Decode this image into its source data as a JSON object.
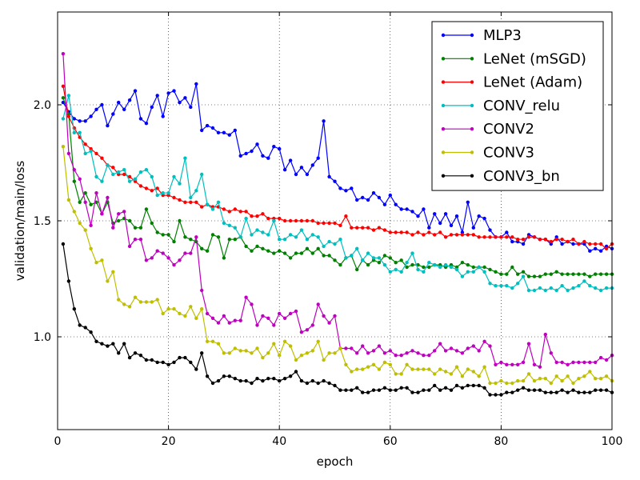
{
  "chart_data": {
    "type": "line",
    "xlabel": "epoch",
    "ylabel": "validation/main/loss",
    "xlim": [
      0,
      100
    ],
    "ylim": [
      0.6,
      2.4
    ],
    "xticks": [
      0,
      20,
      40,
      60,
      80,
      100
    ],
    "xtick_labels": [
      "0",
      "20",
      "40",
      "60",
      "80",
      "100"
    ],
    "yticks": [
      1.0,
      1.5,
      2.0
    ],
    "ytick_labels": [
      "1.0",
      "1.5",
      "2.0"
    ],
    "grid": true,
    "legend_position": "top-right",
    "series": [
      {
        "name": "MLP3",
        "color": "#0000ff",
        "values": [
          2.01,
          1.97,
          1.94,
          1.93,
          1.93,
          1.95,
          1.98,
          2.0,
          1.91,
          1.96,
          2.01,
          1.98,
          2.02,
          2.06,
          1.94,
          1.92,
          1.99,
          2.04,
          1.95,
          2.05,
          2.06,
          2.01,
          2.03,
          1.99,
          2.09,
          1.89,
          1.91,
          1.9,
          1.88,
          1.88,
          1.87,
          1.89,
          1.78,
          1.79,
          1.8,
          1.83,
          1.78,
          1.77,
          1.82,
          1.81,
          1.72,
          1.76,
          1.7,
          1.73,
          1.7,
          1.74,
          1.77,
          1.93,
          1.69,
          1.67,
          1.64,
          1.63,
          1.64,
          1.59,
          1.6,
          1.59,
          1.62,
          1.6,
          1.57,
          1.61,
          1.57,
          1.55,
          1.55,
          1.54,
          1.52,
          1.55,
          1.47,
          1.53,
          1.49,
          1.53,
          1.48,
          1.52,
          1.45,
          1.58,
          1.47,
          1.52,
          1.51,
          1.46,
          1.43,
          1.43,
          1.45,
          1.41,
          1.41,
          1.4,
          1.44,
          1.43,
          1.42,
          1.42,
          1.4,
          1.43,
          1.4,
          1.41,
          1.4,
          1.4,
          1.4,
          1.37,
          1.38,
          1.37,
          1.39,
          1.38
        ]
      },
      {
        "name": "LeNet (mSGD)",
        "color": "#008000",
        "values": [
          2.03,
          1.96,
          1.67,
          1.58,
          1.62,
          1.57,
          1.58,
          1.53,
          1.58,
          1.49,
          1.5,
          1.51,
          1.5,
          1.47,
          1.47,
          1.55,
          1.49,
          1.45,
          1.44,
          1.44,
          1.41,
          1.5,
          1.43,
          1.42,
          1.41,
          1.38,
          1.37,
          1.44,
          1.43,
          1.34,
          1.42,
          1.42,
          1.43,
          1.39,
          1.37,
          1.39,
          1.38,
          1.37,
          1.36,
          1.37,
          1.36,
          1.34,
          1.36,
          1.36,
          1.38,
          1.36,
          1.38,
          1.35,
          1.35,
          1.33,
          1.31,
          1.34,
          1.35,
          1.29,
          1.33,
          1.31,
          1.33,
          1.32,
          1.35,
          1.34,
          1.32,
          1.33,
          1.3,
          1.31,
          1.31,
          1.3,
          1.3,
          1.31,
          1.31,
          1.3,
          1.31,
          1.3,
          1.32,
          1.31,
          1.3,
          1.3,
          1.3,
          1.29,
          1.28,
          1.27,
          1.27,
          1.3,
          1.27,
          1.28,
          1.26,
          1.26,
          1.26,
          1.27,
          1.27,
          1.28,
          1.27,
          1.27,
          1.27,
          1.27,
          1.27,
          1.26,
          1.27,
          1.27,
          1.27,
          1.27
        ]
      },
      {
        "name": "LeNet (Adam)",
        "color": "#ff0000",
        "values": [
          2.08,
          1.95,
          1.9,
          1.86,
          1.83,
          1.81,
          1.79,
          1.77,
          1.74,
          1.73,
          1.7,
          1.7,
          1.69,
          1.67,
          1.65,
          1.64,
          1.63,
          1.64,
          1.61,
          1.61,
          1.6,
          1.59,
          1.58,
          1.58,
          1.58,
          1.56,
          1.57,
          1.56,
          1.56,
          1.55,
          1.54,
          1.55,
          1.54,
          1.54,
          1.52,
          1.52,
          1.53,
          1.51,
          1.51,
          1.51,
          1.5,
          1.5,
          1.5,
          1.5,
          1.5,
          1.5,
          1.49,
          1.49,
          1.49,
          1.49,
          1.48,
          1.52,
          1.47,
          1.47,
          1.47,
          1.47,
          1.46,
          1.47,
          1.46,
          1.45,
          1.45,
          1.45,
          1.45,
          1.44,
          1.45,
          1.44,
          1.45,
          1.44,
          1.45,
          1.43,
          1.44,
          1.44,
          1.44,
          1.44,
          1.44,
          1.43,
          1.43,
          1.43,
          1.43,
          1.43,
          1.43,
          1.43,
          1.42,
          1.42,
          1.43,
          1.43,
          1.42,
          1.42,
          1.41,
          1.42,
          1.42,
          1.41,
          1.42,
          1.4,
          1.41,
          1.4,
          1.4,
          1.4,
          1.38,
          1.4
        ]
      },
      {
        "name": "CONV_relu",
        "color": "#00bfbf",
        "values": [
          1.94,
          2.04,
          1.88,
          1.88,
          1.79,
          1.8,
          1.69,
          1.67,
          1.74,
          1.7,
          1.71,
          1.72,
          1.67,
          1.68,
          1.71,
          1.72,
          1.69,
          1.61,
          1.62,
          1.62,
          1.69,
          1.66,
          1.77,
          1.6,
          1.63,
          1.7,
          1.57,
          1.55,
          1.58,
          1.49,
          1.48,
          1.47,
          1.43,
          1.51,
          1.44,
          1.46,
          1.45,
          1.44,
          1.5,
          1.42,
          1.42,
          1.44,
          1.43,
          1.46,
          1.42,
          1.44,
          1.43,
          1.39,
          1.41,
          1.4,
          1.42,
          1.34,
          1.35,
          1.38,
          1.33,
          1.36,
          1.34,
          1.34,
          1.31,
          1.28,
          1.29,
          1.28,
          1.32,
          1.36,
          1.29,
          1.28,
          1.32,
          1.31,
          1.3,
          1.31,
          1.3,
          1.29,
          1.26,
          1.28,
          1.28,
          1.3,
          1.28,
          1.23,
          1.22,
          1.22,
          1.22,
          1.21,
          1.23,
          1.26,
          1.2,
          1.2,
          1.21,
          1.2,
          1.21,
          1.2,
          1.22,
          1.2,
          1.21,
          1.22,
          1.24,
          1.22,
          1.21,
          1.2,
          1.21,
          1.21
        ]
      },
      {
        "name": "CONV2",
        "color": "#bf00bf",
        "values": [
          2.22,
          1.79,
          1.72,
          1.68,
          1.58,
          1.48,
          1.62,
          1.53,
          1.6,
          1.47,
          1.53,
          1.54,
          1.39,
          1.42,
          1.42,
          1.33,
          1.34,
          1.37,
          1.36,
          1.34,
          1.31,
          1.33,
          1.36,
          1.36,
          1.43,
          1.2,
          1.1,
          1.08,
          1.06,
          1.09,
          1.06,
          1.07,
          1.07,
          1.17,
          1.14,
          1.05,
          1.09,
          1.08,
          1.05,
          1.1,
          1.08,
          1.1,
          1.11,
          1.02,
          1.03,
          1.05,
          1.14,
          1.09,
          1.06,
          1.09,
          0.95,
          0.95,
          0.95,
          0.93,
          0.96,
          0.93,
          0.94,
          0.96,
          0.93,
          0.94,
          0.92,
          0.92,
          0.93,
          0.94,
          0.93,
          0.92,
          0.92,
          0.94,
          0.97,
          0.94,
          0.95,
          0.94,
          0.93,
          0.95,
          0.96,
          0.94,
          0.98,
          0.96,
          0.88,
          0.89,
          0.88,
          0.88,
          0.88,
          0.89,
          0.97,
          0.88,
          0.87,
          1.01,
          0.93,
          0.89,
          0.89,
          0.88,
          0.89,
          0.89,
          0.89,
          0.89,
          0.89,
          0.91,
          0.9,
          0.92
        ]
      },
      {
        "name": "CONV3",
        "color": "#bfbf00",
        "values": [
          1.82,
          1.59,
          1.54,
          1.49,
          1.46,
          1.38,
          1.32,
          1.33,
          1.24,
          1.28,
          1.16,
          1.14,
          1.13,
          1.17,
          1.15,
          1.15,
          1.15,
          1.16,
          1.1,
          1.12,
          1.12,
          1.1,
          1.09,
          1.13,
          1.08,
          1.12,
          0.98,
          0.98,
          0.97,
          0.93,
          0.93,
          0.95,
          0.94,
          0.94,
          0.93,
          0.95,
          0.91,
          0.93,
          0.97,
          0.92,
          0.98,
          0.96,
          0.9,
          0.92,
          0.93,
          0.94,
          0.98,
          0.9,
          0.93,
          0.93,
          0.95,
          0.88,
          0.85,
          0.86,
          0.86,
          0.87,
          0.88,
          0.86,
          0.89,
          0.88,
          0.84,
          0.84,
          0.88,
          0.86,
          0.86,
          0.86,
          0.86,
          0.84,
          0.86,
          0.85,
          0.84,
          0.87,
          0.83,
          0.86,
          0.85,
          0.83,
          0.87,
          0.8,
          0.8,
          0.81,
          0.8,
          0.8,
          0.81,
          0.81,
          0.84,
          0.81,
          0.82,
          0.82,
          0.8,
          0.83,
          0.81,
          0.83,
          0.8,
          0.82,
          0.83,
          0.85,
          0.82,
          0.82,
          0.83,
          0.81
        ]
      },
      {
        "name": "CONV3_bn",
        "color": "#000000",
        "values": [
          1.4,
          1.24,
          1.12,
          1.05,
          1.04,
          1.02,
          0.98,
          0.97,
          0.96,
          0.97,
          0.93,
          0.97,
          0.91,
          0.93,
          0.92,
          0.9,
          0.9,
          0.89,
          0.89,
          0.88,
          0.89,
          0.91,
          0.91,
          0.89,
          0.86,
          0.93,
          0.83,
          0.8,
          0.81,
          0.83,
          0.83,
          0.82,
          0.81,
          0.81,
          0.8,
          0.82,
          0.81,
          0.82,
          0.82,
          0.81,
          0.82,
          0.83,
          0.85,
          0.81,
          0.8,
          0.81,
          0.8,
          0.81,
          0.8,
          0.79,
          0.77,
          0.77,
          0.77,
          0.78,
          0.76,
          0.76,
          0.77,
          0.77,
          0.78,
          0.77,
          0.77,
          0.78,
          0.78,
          0.76,
          0.76,
          0.77,
          0.77,
          0.79,
          0.77,
          0.78,
          0.77,
          0.79,
          0.78,
          0.79,
          0.79,
          0.79,
          0.78,
          0.75,
          0.75,
          0.75,
          0.76,
          0.76,
          0.77,
          0.78,
          0.77,
          0.77,
          0.77,
          0.76,
          0.76,
          0.76,
          0.77,
          0.76,
          0.77,
          0.76,
          0.76,
          0.76,
          0.77,
          0.77,
          0.77,
          0.76
        ]
      }
    ]
  }
}
